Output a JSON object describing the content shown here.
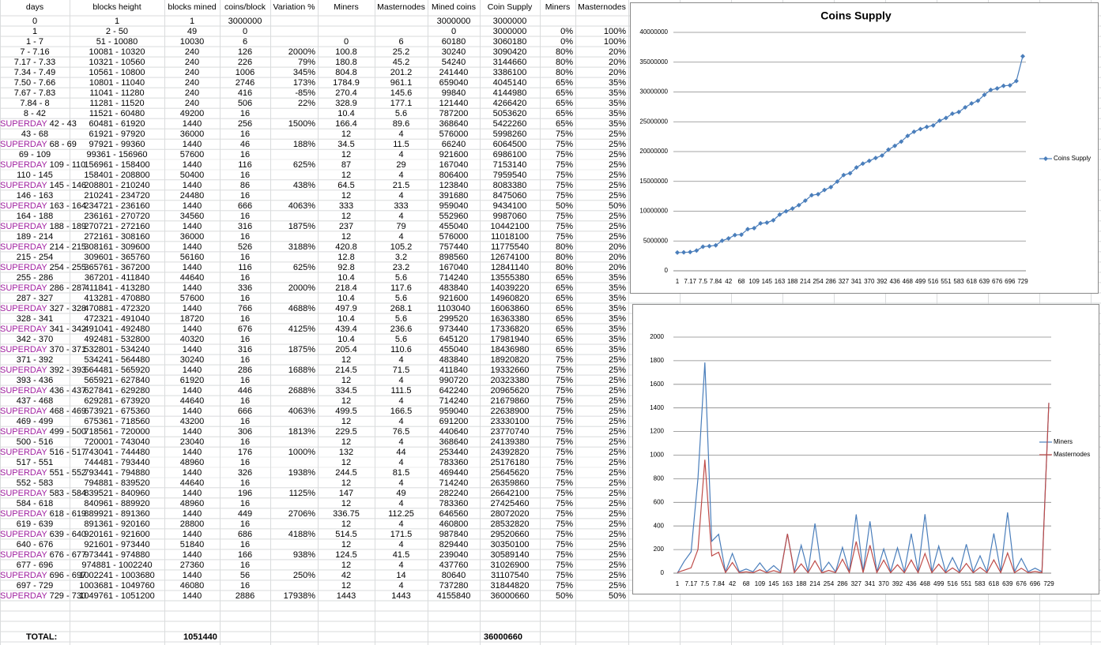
{
  "table": {
    "columns": [
      "days",
      "blocks height",
      "blocks mined",
      "coins/block",
      "Variation %",
      "Miners",
      "Masternodes",
      "Mined coins",
      "Coin Supply",
      "Miners",
      "Masternodes"
    ],
    "rows": [
      [
        0,
        1,
        1,
        3000000,
        null,
        null,
        null,
        3000000,
        3000000,
        null,
        null
      ],
      [
        1,
        "2 - 50",
        49,
        0,
        null,
        null,
        null,
        0,
        3000000,
        "0%",
        "100%"
      ],
      [
        "1 - 7",
        "51 - 10080",
        10030,
        6,
        null,
        0,
        6,
        60180,
        3060180,
        "0%",
        "100%"
      ],
      [
        "7 - 7.16",
        "10081 - 10320",
        240,
        126,
        "2000%",
        100.8,
        25.2,
        30240,
        3090420,
        "80%",
        "20%"
      ],
      [
        "7.17 - 7.33",
        "10321 - 10560",
        240,
        226,
        "79%",
        180.8,
        45.2,
        54240,
        3144660,
        "80%",
        "20%"
      ],
      [
        "7.34 - 7.49",
        "10561 - 10800",
        240,
        1006,
        "345%",
        804.8,
        201.2,
        241440,
        3386100,
        "80%",
        "20%"
      ],
      [
        "7.50 - 7.66",
        "10801 - 11040",
        240,
        2746,
        "173%",
        1784.9,
        961.1,
        659040,
        4045140,
        "65%",
        "35%"
      ],
      [
        "7.67 - 7.83",
        "11041 - 11280",
        240,
        416,
        "-85%",
        270.4,
        145.6,
        99840,
        4144980,
        "65%",
        "35%"
      ],
      [
        "7.84 - 8",
        "11281 - 11520",
        240,
        506,
        "22%",
        328.9,
        177.1,
        121440,
        4266420,
        "65%",
        "35%"
      ],
      [
        "8 - 42",
        "11521 - 60480",
        49200,
        16,
        null,
        10.4,
        5.6,
        787200,
        5053620,
        "65%",
        "35%"
      ],
      [
        [
          "SUPERDAY",
          "42 - 43"
        ],
        "60481 - 61920",
        1440,
        256,
        "1500%",
        166.4,
        89.6,
        368640,
        5422260,
        "65%",
        "35%"
      ],
      [
        "43 - 68",
        "61921 - 97920",
        36000,
        16,
        null,
        12,
        4,
        576000,
        5998260,
        "75%",
        "25%"
      ],
      [
        [
          "SUPERDAY",
          "68 - 69"
        ],
        "97921 - 99360",
        1440,
        46,
        "188%",
        34.5,
        11.5,
        66240,
        6064500,
        "75%",
        "25%"
      ],
      [
        "69 - 109",
        "99361 - 156960",
        57600,
        16,
        null,
        12,
        4,
        921600,
        6986100,
        "75%",
        "25%"
      ],
      [
        [
          "SUPERDAY",
          "109 - 110"
        ],
        "156961 - 158400",
        1440,
        116,
        "625%",
        87,
        29,
        167040,
        7153140,
        "75%",
        "25%"
      ],
      [
        "110 - 145",
        "158401 - 208800",
        50400,
        16,
        null,
        12,
        4,
        806400,
        7959540,
        "75%",
        "25%"
      ],
      [
        [
          "SUPERDAY",
          "145 - 146"
        ],
        "208801 - 210240",
        1440,
        86,
        "438%",
        64.5,
        21.5,
        123840,
        8083380,
        "75%",
        "25%"
      ],
      [
        "146 - 163",
        "210241 - 234720",
        24480,
        16,
        null,
        12,
        4,
        391680,
        8475060,
        "75%",
        "25%"
      ],
      [
        [
          "SUPERDAY",
          "163 - 164"
        ],
        "234721 - 236160",
        1440,
        666,
        "4063%",
        333,
        333,
        959040,
        9434100,
        "50%",
        "50%"
      ],
      [
        "164 - 188",
        "236161 - 270720",
        34560,
        16,
        null,
        12,
        4,
        552960,
        9987060,
        "75%",
        "25%"
      ],
      [
        [
          "SUPERDAY",
          "188 - 189"
        ],
        "270721 - 272160",
        1440,
        316,
        "1875%",
        237,
        79,
        455040,
        10442100,
        "75%",
        "25%"
      ],
      [
        "189 - 214",
        "272161 - 308160",
        36000,
        16,
        null,
        12,
        4,
        576000,
        11018100,
        "75%",
        "25%"
      ],
      [
        [
          "SUPERDAY",
          "214 - 215"
        ],
        "308161 - 309600",
        1440,
        526,
        "3188%",
        420.8,
        105.2,
        757440,
        11775540,
        "80%",
        "20%"
      ],
      [
        "215 - 254",
        "309601 - 365760",
        56160,
        16,
        null,
        12.8,
        3.2,
        898560,
        12674100,
        "80%",
        "20%"
      ],
      [
        [
          "SUPERDAY",
          "254 - 255"
        ],
        "365761 - 367200",
        1440,
        116,
        "625%",
        92.8,
        23.2,
        167040,
        12841140,
        "80%",
        "20%"
      ],
      [
        "255 - 286",
        "367201 - 411840",
        44640,
        16,
        null,
        10.4,
        5.6,
        714240,
        13555380,
        "65%",
        "35%"
      ],
      [
        [
          "SUPERDAY",
          "286 - 287"
        ],
        "411841 - 413280",
        1440,
        336,
        "2000%",
        218.4,
        117.6,
        483840,
        14039220,
        "65%",
        "35%"
      ],
      [
        "287 - 327",
        "413281 - 470880",
        57600,
        16,
        null,
        10.4,
        5.6,
        921600,
        14960820,
        "65%",
        "35%"
      ],
      [
        [
          "SUPERDAY",
          "327 - 328"
        ],
        "470881 - 472320",
        1440,
        766,
        "4688%",
        497.9,
        268.1,
        1103040,
        16063860,
        "65%",
        "35%"
      ],
      [
        "328 - 341",
        "472321 - 491040",
        18720,
        16,
        null,
        10.4,
        5.6,
        299520,
        16363380,
        "65%",
        "35%"
      ],
      [
        [
          "SUPERDAY",
          "341 - 342"
        ],
        "491041 - 492480",
        1440,
        676,
        "4125%",
        439.4,
        236.6,
        973440,
        17336820,
        "65%",
        "35%"
      ],
      [
        "342 - 370",
        "492481 - 532800",
        40320,
        16,
        null,
        10.4,
        5.6,
        645120,
        17981940,
        "65%",
        "35%"
      ],
      [
        [
          "SUPERDAY",
          "370 - 371"
        ],
        "532801 - 534240",
        1440,
        316,
        "1875%",
        205.4,
        110.6,
        455040,
        18436980,
        "65%",
        "35%"
      ],
      [
        "371 - 392",
        "534241 - 564480",
        30240,
        16,
        null,
        12,
        4,
        483840,
        18920820,
        "75%",
        "25%"
      ],
      [
        [
          "SUPERDAY",
          "392 - 393"
        ],
        "564481 - 565920",
        1440,
        286,
        "1688%",
        214.5,
        71.5,
        411840,
        19332660,
        "75%",
        "25%"
      ],
      [
        "393 - 436",
        "565921 - 627840",
        61920,
        16,
        null,
        12,
        4,
        990720,
        20323380,
        "75%",
        "25%"
      ],
      [
        [
          "SUPERDAY",
          "436 - 437"
        ],
        "627841 - 629280",
        1440,
        446,
        "2688%",
        334.5,
        111.5,
        642240,
        20965620,
        "75%",
        "25%"
      ],
      [
        "437 - 468",
        "629281 - 673920",
        44640,
        16,
        null,
        12,
        4,
        714240,
        21679860,
        "75%",
        "25%"
      ],
      [
        [
          "SUPERDAY",
          "468 - 469"
        ],
        "673921 - 675360",
        1440,
        666,
        "4063%",
        499.5,
        166.5,
        959040,
        22638900,
        "75%",
        "25%"
      ],
      [
        "469 - 499",
        "675361 - 718560",
        43200,
        16,
        null,
        12,
        4,
        691200,
        23330100,
        "75%",
        "25%"
      ],
      [
        [
          "SUPERDAY",
          "499 - 500"
        ],
        "718561 - 720000",
        1440,
        306,
        "1813%",
        229.5,
        76.5,
        440640,
        23770740,
        "75%",
        "25%"
      ],
      [
        "500 - 516",
        "720001 - 743040",
        23040,
        16,
        null,
        12,
        4,
        368640,
        24139380,
        "75%",
        "25%"
      ],
      [
        [
          "SUPERDAY",
          "516 - 517"
        ],
        "743041 - 744480",
        1440,
        176,
        "1000%",
        132,
        44,
        253440,
        24392820,
        "75%",
        "25%"
      ],
      [
        "517 - 551",
        "744481 - 793440",
        48960,
        16,
        null,
        12,
        4,
        783360,
        25176180,
        "75%",
        "25%"
      ],
      [
        [
          "SUPERDAY",
          "551 - 552"
        ],
        "793441 - 794880",
        1440,
        326,
        "1938%",
        244.5,
        81.5,
        469440,
        25645620,
        "75%",
        "25%"
      ],
      [
        "552 - 583",
        "794881 - 839520",
        44640,
        16,
        null,
        12,
        4,
        714240,
        26359860,
        "75%",
        "25%"
      ],
      [
        [
          "SUPERDAY",
          "583 - 584"
        ],
        "839521 - 840960",
        1440,
        196,
        "1125%",
        147,
        49,
        282240,
        26642100,
        "75%",
        "25%"
      ],
      [
        "584 - 618",
        "840961 - 889920",
        48960,
        16,
        null,
        12,
        4,
        783360,
        27425460,
        "75%",
        "25%"
      ],
      [
        [
          "SUPERDAY",
          "618 - 619"
        ],
        "889921 - 891360",
        1440,
        449,
        "2706%",
        336.75,
        112.25,
        646560,
        28072020,
        "75%",
        "25%"
      ],
      [
        "619 - 639",
        "891361 - 920160",
        28800,
        16,
        null,
        12,
        4,
        460800,
        28532820,
        "75%",
        "25%"
      ],
      [
        [
          "SUPERDAY",
          "639 - 640"
        ],
        "920161 - 921600",
        1440,
        686,
        "4188%",
        514.5,
        171.5,
        987840,
        29520660,
        "75%",
        "25%"
      ],
      [
        "640 - 676",
        "921601 - 973440",
        51840,
        16,
        null,
        12,
        4,
        829440,
        30350100,
        "75%",
        "25%"
      ],
      [
        [
          "SUPERDAY",
          "676 - 677"
        ],
        "973441 - 974880",
        1440,
        166,
        "938%",
        124.5,
        41.5,
        239040,
        30589140,
        "75%",
        "25%"
      ],
      [
        "677 - 696",
        "974881 - 1002240",
        27360,
        16,
        null,
        12,
        4,
        437760,
        31026900,
        "75%",
        "25%"
      ],
      [
        [
          "SUPERDAY",
          "696 - 697"
        ],
        "1002241 - 1003680",
        1440,
        56,
        "250%",
        42,
        14,
        80640,
        31107540,
        "75%",
        "25%"
      ],
      [
        "697 - 729",
        "1003681 - 1049760",
        46080,
        16,
        null,
        12,
        4,
        737280,
        31844820,
        "75%",
        "25%"
      ],
      [
        [
          "SUPERDAY",
          "729 - 730"
        ],
        "1049761 - 1051200",
        1440,
        2886,
        "17938%",
        1443,
        1443,
        4155840,
        36000660,
        "50%",
        "50%"
      ]
    ],
    "total": {
      "label": "TOTAL:",
      "blocks_mined": 1051440,
      "coin_supply": 36000660
    }
  },
  "chart_data": [
    {
      "type": "line",
      "title": "Coins Supply",
      "categories": [
        "1",
        null,
        "7.17",
        null,
        "7.5",
        null,
        "7.84",
        null,
        "42",
        null,
        "68",
        null,
        "109",
        null,
        "145",
        null,
        "163",
        null,
        "188",
        null,
        "214",
        null,
        "254",
        null,
        "286",
        null,
        "327",
        null,
        "341",
        null,
        "370",
        null,
        "392",
        null,
        "436",
        null,
        "468",
        null,
        "499",
        null,
        "516",
        null,
        "551",
        null,
        "583",
        null,
        "618",
        null,
        "639",
        null,
        "676",
        null,
        "696",
        null,
        "729"
      ],
      "series": [
        {
          "name": "Coins Supply",
          "color": "#4a7ebb",
          "marker": "diamond",
          "values": [
            3060180,
            3090420,
            3144660,
            3386100,
            4045140,
            4144980,
            4266420,
            5053620,
            5422260,
            5998260,
            6064500,
            6986100,
            7153140,
            7959540,
            8083380,
            8475060,
            9434100,
            9987060,
            10442100,
            11018100,
            11775540,
            12674100,
            12841140,
            13555380,
            14039220,
            14960820,
            16063860,
            16363380,
            17336820,
            17981940,
            18436980,
            18920820,
            19332660,
            20323380,
            20965620,
            21679860,
            22638900,
            23330100,
            23770740,
            24139380,
            24392820,
            25176180,
            25645620,
            26359860,
            26642100,
            27425460,
            28072020,
            28532820,
            29520660,
            30350100,
            30589140,
            31026900,
            31107540,
            31844820,
            36000660
          ]
        }
      ],
      "ylim": [
        0,
        40000000
      ],
      "yticks": [
        0,
        5000000,
        10000000,
        15000000,
        20000000,
        25000000,
        30000000,
        35000000,
        40000000
      ],
      "grid": true,
      "legend": "right"
    },
    {
      "type": "line",
      "categories": [
        "1",
        null,
        "7.17",
        null,
        "7.5",
        null,
        "7.84",
        null,
        "42",
        null,
        "68",
        null,
        "109",
        null,
        "145",
        null,
        "163",
        null,
        "188",
        null,
        "214",
        null,
        "254",
        null,
        "286",
        null,
        "327",
        null,
        "341",
        null,
        "370",
        null,
        "392",
        null,
        "436",
        null,
        "468",
        null,
        "499",
        null,
        "516",
        null,
        "551",
        null,
        "583",
        null,
        "618",
        null,
        "639",
        null,
        "676",
        null,
        "696",
        null,
        "729"
      ],
      "series": [
        {
          "name": "Miners",
          "color": "#4a7ebb",
          "values": [
            0,
            100.8,
            180.8,
            804.8,
            1784.9,
            270.4,
            328.9,
            10.4,
            166.4,
            12,
            34.5,
            12,
            87,
            12,
            64.5,
            12,
            333,
            12,
            237,
            12,
            420.8,
            12.8,
            92.8,
            10.4,
            218.4,
            10.4,
            497.9,
            10.4,
            439.4,
            10.4,
            205.4,
            12,
            214.5,
            12,
            334.5,
            12,
            499.5,
            12,
            229.5,
            12,
            132,
            12,
            244.5,
            12,
            147,
            12,
            336.75,
            12,
            514.5,
            12,
            124.5,
            12,
            42,
            12,
            1443
          ]
        },
        {
          "name": "Masternodes",
          "color": "#be4b48",
          "values": [
            6,
            25.2,
            45.2,
            201.2,
            961.1,
            145.6,
            177.1,
            5.6,
            89.6,
            4,
            11.5,
            4,
            29,
            4,
            21.5,
            4,
            333,
            4,
            79,
            4,
            105.2,
            3.2,
            23.2,
            5.6,
            117.6,
            5.6,
            268.1,
            5.6,
            236.6,
            5.6,
            110.6,
            4,
            71.5,
            4,
            111.5,
            4,
            166.5,
            4,
            76.5,
            4,
            44,
            4,
            81.5,
            4,
            49,
            4,
            112.25,
            4,
            171.5,
            4,
            41.5,
            4,
            14,
            4,
            1443
          ]
        }
      ],
      "ylim": [
        0,
        2000
      ],
      "yticks": [
        0,
        200,
        400,
        600,
        800,
        1000,
        1200,
        1400,
        1600,
        1800,
        2000
      ],
      "grid": true,
      "legend": "right"
    }
  ]
}
